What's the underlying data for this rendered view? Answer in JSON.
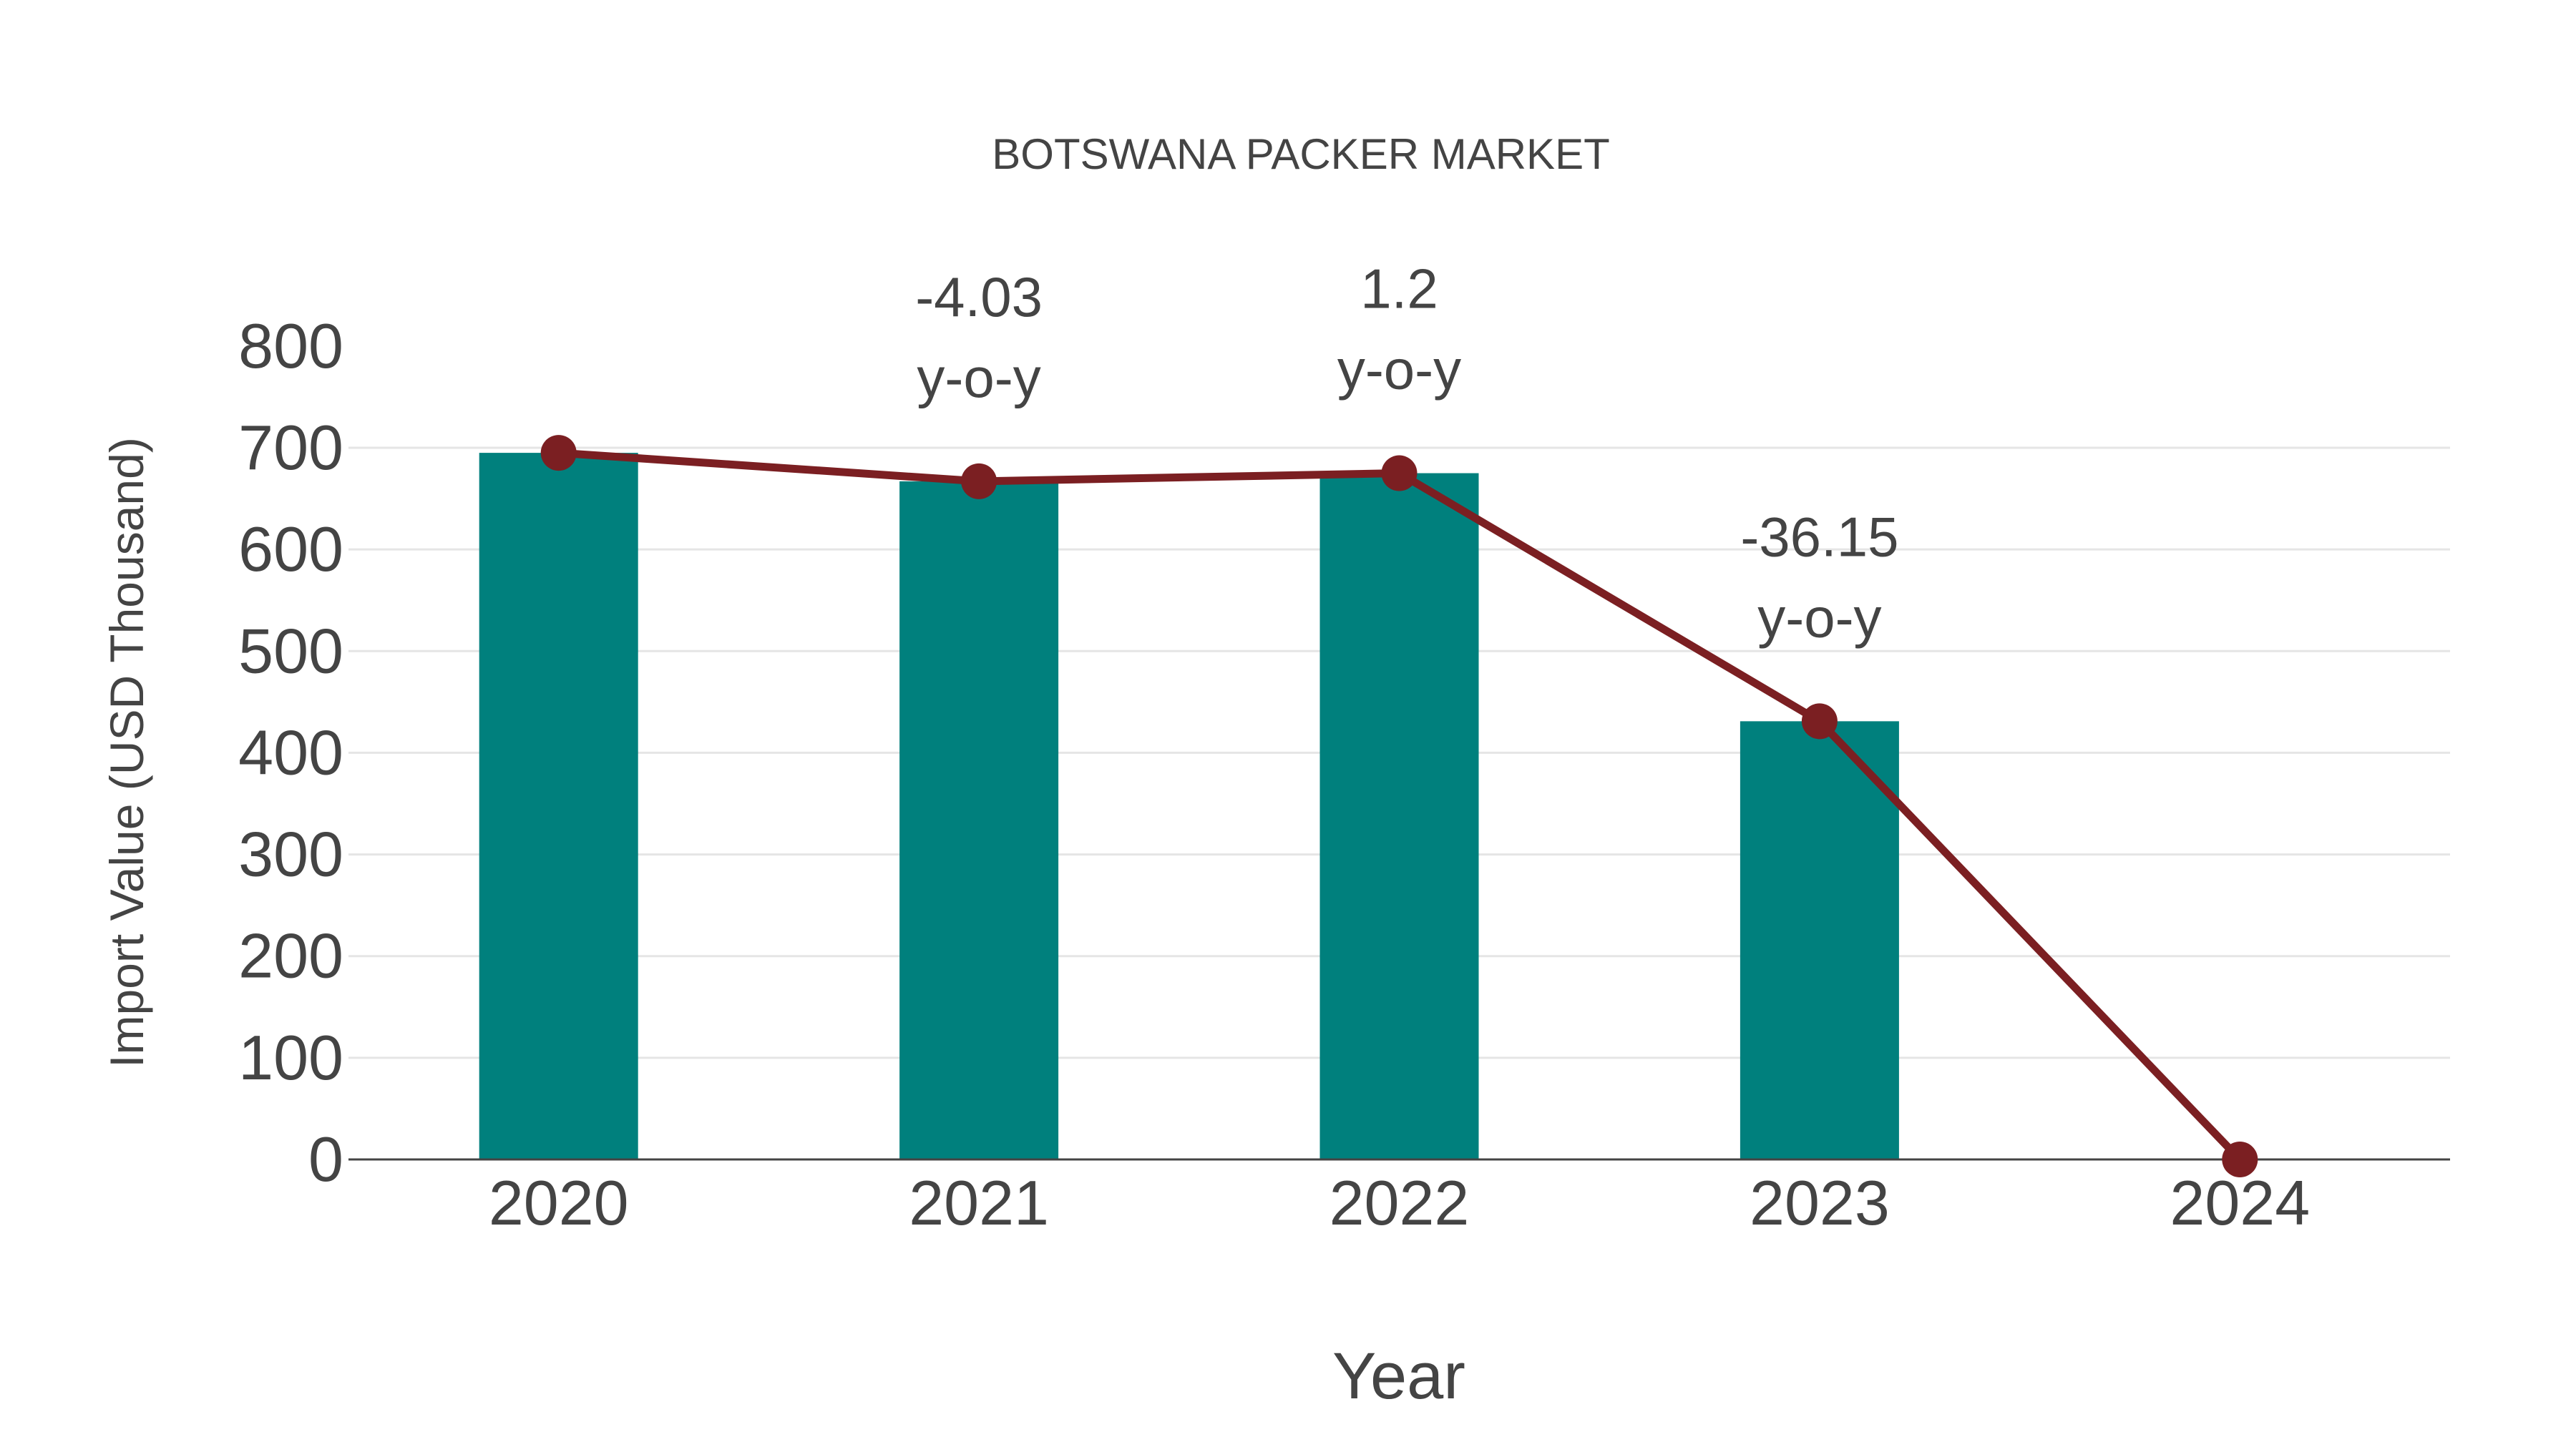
{
  "chart_data": {
    "type": "bar",
    "title": "BOTSWANA PACKER MARKET",
    "xlabel": "Year",
    "ylabel": "Import Value (USD Thousand)",
    "categories": [
      "2020",
      "2021",
      "2022",
      "2023",
      "2024"
    ],
    "series": [
      {
        "name": "Import Value (bars)",
        "type": "bar",
        "color": "#00807d",
        "values": [
          695,
          667,
          675,
          431,
          null
        ]
      },
      {
        "name": "Import Value (line)",
        "type": "line",
        "color": "#7b1f22",
        "values": [
          695,
          667,
          675,
          431,
          0
        ]
      }
    ],
    "annotations": [
      {
        "category": "2021",
        "value": "-4.03",
        "suffix": "y-o-y"
      },
      {
        "category": "2022",
        "value": "1.2",
        "suffix": "y-o-y"
      },
      {
        "category": "2023",
        "value": "-36.15",
        "suffix": "y-o-y"
      }
    ],
    "ylim": [
      0,
      800
    ],
    "yticks": [
      "0",
      "100",
      "200",
      "300",
      "400",
      "500",
      "600",
      "700",
      "800"
    ],
    "grid": true,
    "legend": "none"
  }
}
